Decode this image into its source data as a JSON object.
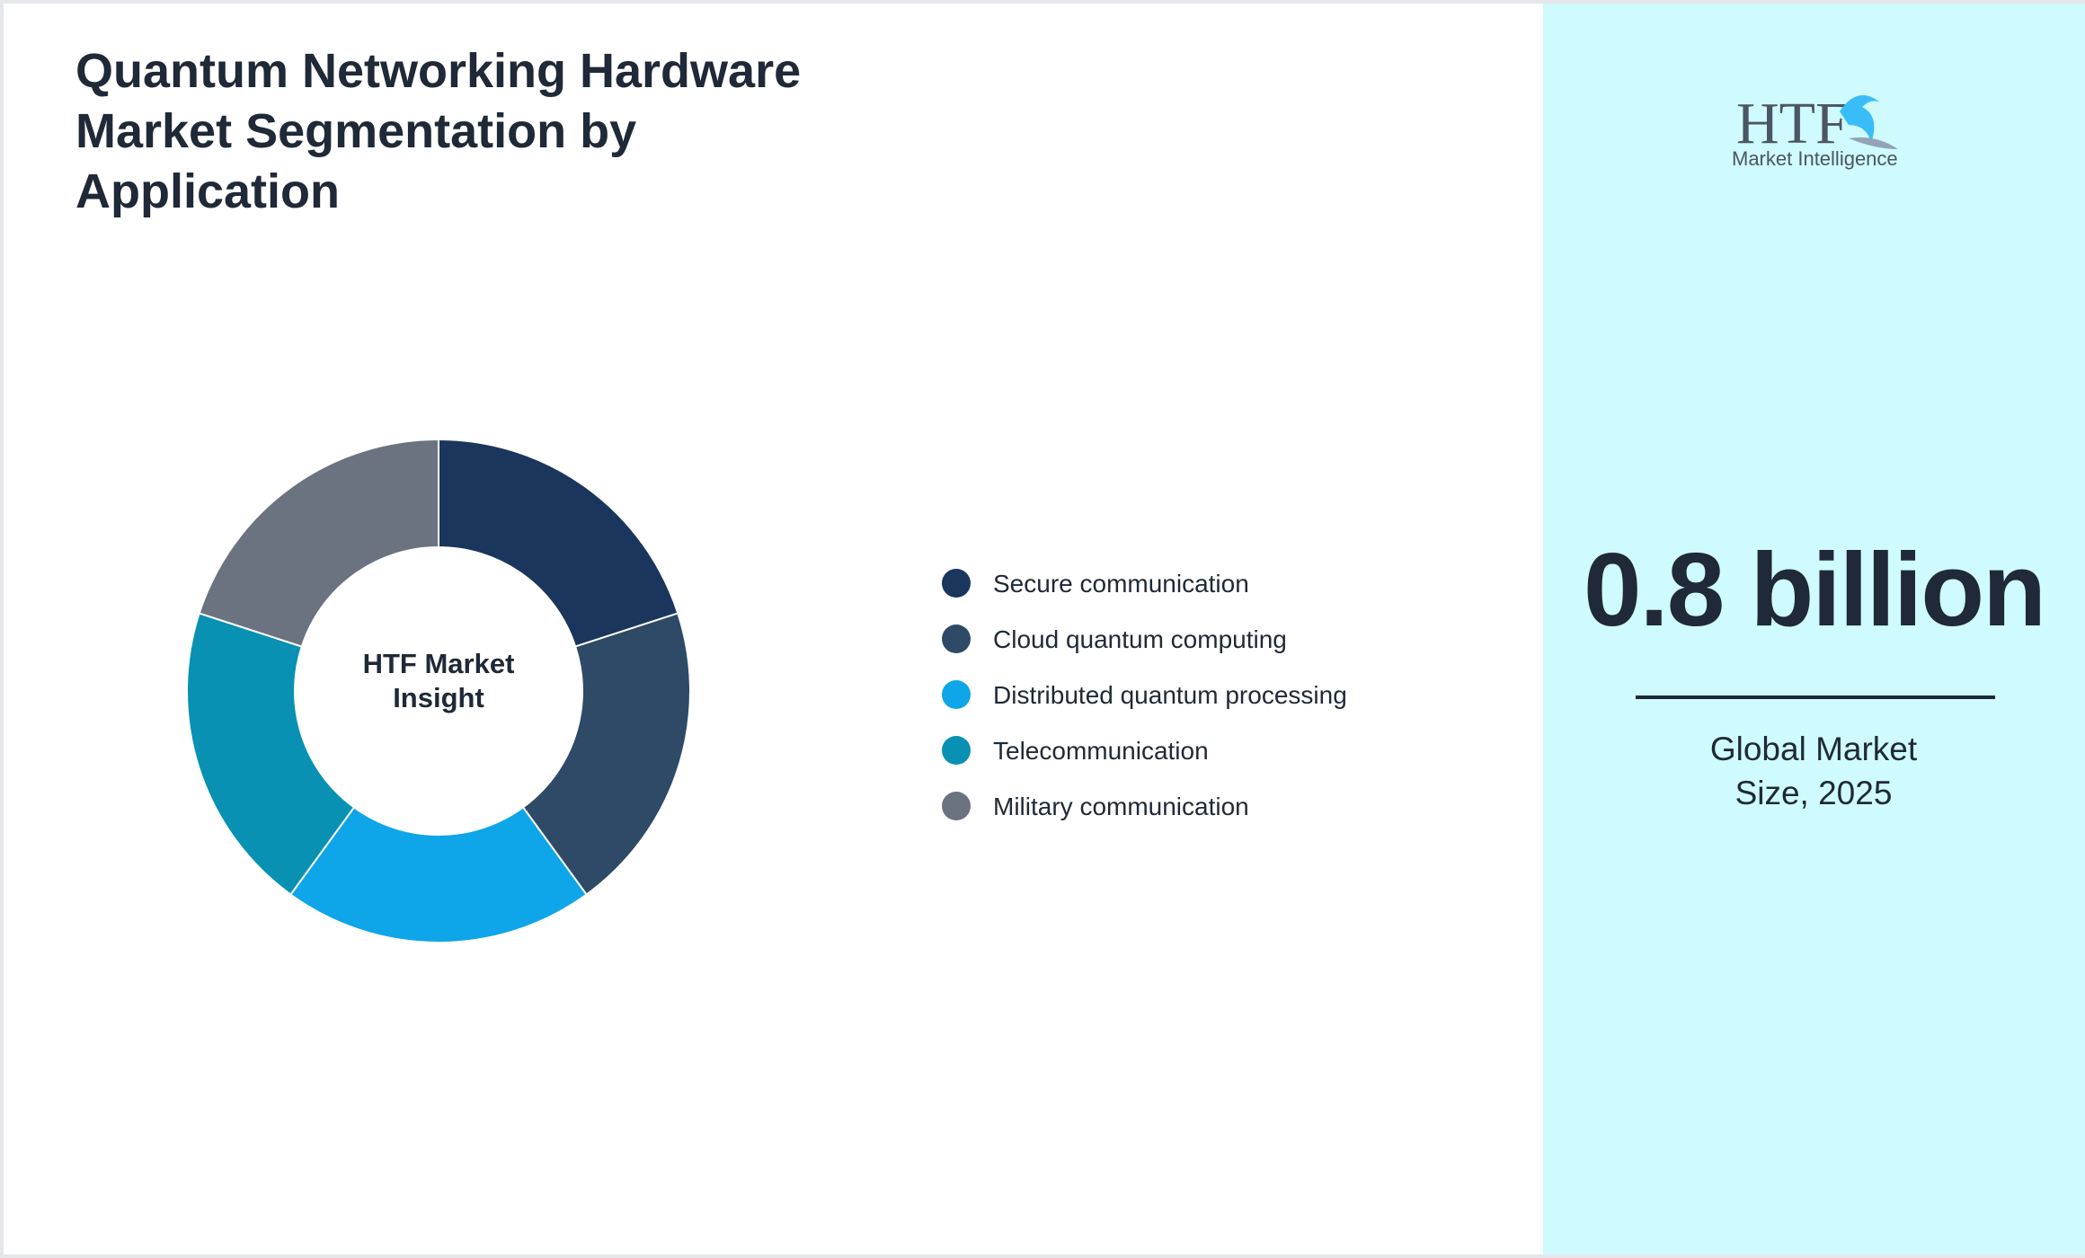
{
  "chart_data": {
    "type": "pie",
    "title": "Quantum Networking Hardware Market Segmentation by Application",
    "center_label": "HTF Market Insight",
    "categories": [
      "Secure communication",
      "Cloud quantum computing",
      "Distributed quantum processing",
      "Telecommunication",
      "Military communication"
    ],
    "values": [
      20,
      20,
      20,
      20,
      20
    ],
    "colors": [
      "#1b365d",
      "#2e4a67",
      "#0ea5e9",
      "#0891b2",
      "#6b7280"
    ]
  },
  "panel": {
    "value": "0.8 billion",
    "caption": "Global Market Size, 2025"
  },
  "logo": {
    "text": "HTF",
    "subtext": "Market Intelligence"
  }
}
